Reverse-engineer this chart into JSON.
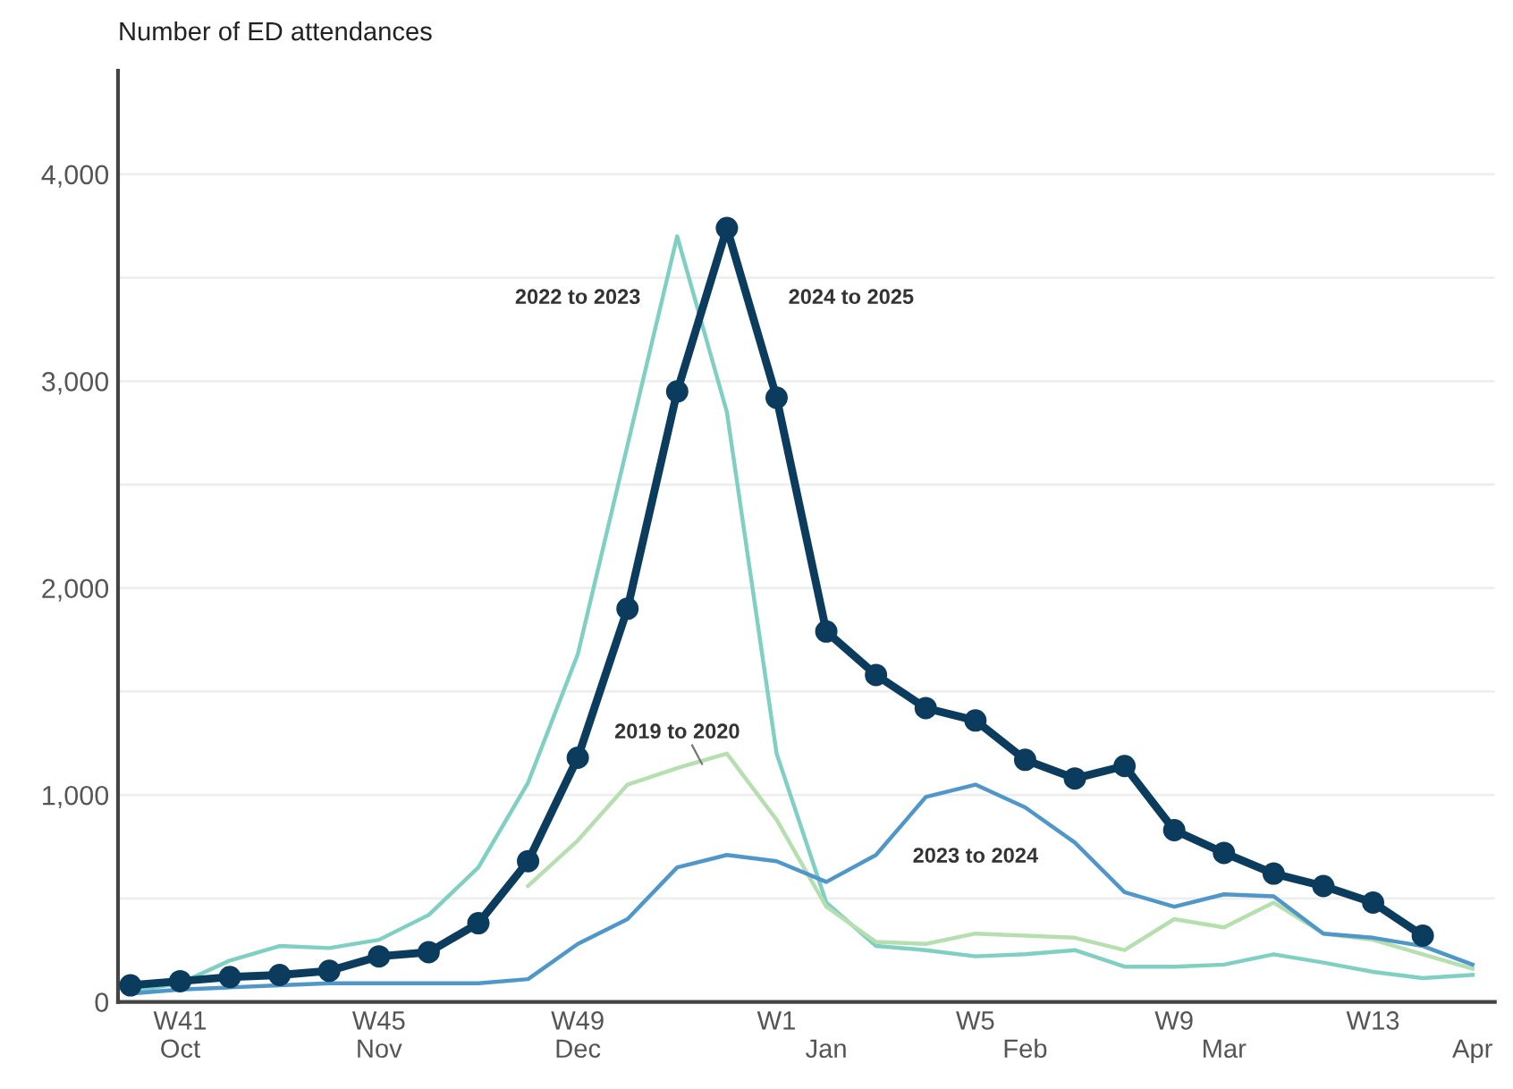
{
  "chart_data": {
    "type": "line",
    "ylabel": "Number of ED attendances",
    "categories": [
      null,
      "W41\nOct",
      null,
      null,
      null,
      "W45\nNov",
      null,
      null,
      null,
      "W49\nDec",
      null,
      null,
      null,
      "W1",
      "\nJan",
      null,
      null,
      "W5",
      "\nFeb",
      null,
      null,
      "W9",
      "\nMar",
      null,
      null,
      "W13",
      null,
      "\nApr"
    ],
    "series": [
      {
        "name": "2022 to 2023",
        "color": "#7fcfc2",
        "marker": "none",
        "values": [
          50,
          90,
          200,
          270,
          260,
          300,
          420,
          650,
          1060,
          1680,
          2690,
          3700,
          2850,
          1200,
          480,
          270,
          250,
          220,
          230,
          250,
          170,
          170,
          180,
          230,
          190,
          145,
          115,
          130
        ]
      },
      {
        "name": "2019 to 2020",
        "color": "#b5dfae",
        "marker": "none",
        "values": [
          null,
          null,
          null,
          null,
          null,
          null,
          null,
          null,
          560,
          780,
          1050,
          1130,
          1200,
          880,
          460,
          290,
          280,
          330,
          320,
          310,
          250,
          400,
          360,
          480,
          330,
          300,
          230,
          160
        ]
      },
      {
        "name": "2023 to 2024",
        "color": "#4f97c9",
        "marker": "none",
        "values": [
          40,
          60,
          70,
          80,
          90,
          90,
          90,
          90,
          110,
          280,
          400,
          650,
          710,
          680,
          580,
          710,
          990,
          1050,
          940,
          770,
          530,
          460,
          520,
          510,
          330,
          310,
          270,
          180
        ]
      },
      {
        "name": "2024 to 2025",
        "color": "#0b3c5d",
        "marker": "circle",
        "values": [
          80,
          100,
          120,
          130,
          150,
          220,
          240,
          380,
          680,
          1180,
          1900,
          2950,
          3740,
          2920,
          1790,
          1580,
          1420,
          1360,
          1170,
          1080,
          1140,
          830,
          720,
          620,
          560,
          480,
          320,
          null
        ]
      }
    ],
    "ylim": [
      0,
      4500
    ],
    "yticks": [
      0,
      {
        "value": 500,
        "label": null
      },
      {
        "value": 1000,
        "label": "1,000"
      },
      {
        "value": 1500,
        "label": null
      },
      {
        "value": 2000,
        "label": "2,000"
      },
      {
        "value": 2500,
        "label": null
      },
      {
        "value": 3000,
        "label": "3,000"
      },
      {
        "value": 3500,
        "label": null
      },
      {
        "value": 4000,
        "label": "4,000"
      }
    ],
    "grid": "y",
    "legend": false,
    "line_style": "solid"
  }
}
